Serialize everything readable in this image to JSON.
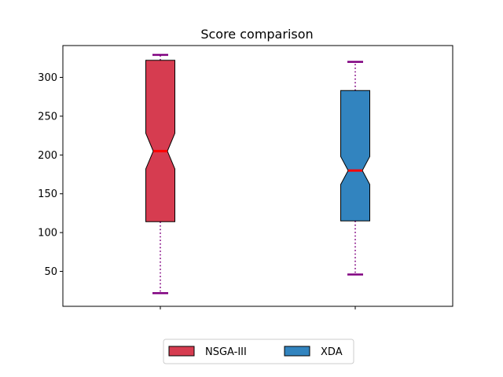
{
  "chart_data": {
    "type": "box",
    "title": "Score comparison",
    "xlabel": "",
    "ylabel": "",
    "ylim": [
      5,
      341
    ],
    "yticks": [
      50,
      100,
      150,
      200,
      250,
      300
    ],
    "notched": true,
    "grid": false,
    "legend_position": "bottom-center, below plot",
    "series": [
      {
        "name": "NSGA-III",
        "color": "#d63c50",
        "whisker_low": 22,
        "q1": 114,
        "median": 205,
        "q3": 322,
        "whisker_high": 329,
        "notch_low": 182,
        "notch_high": 228
      },
      {
        "name": "XDA",
        "color": "#3284bf",
        "whisker_low": 46,
        "q1": 115,
        "median": 180,
        "q3": 283,
        "whisker_high": 320,
        "notch_low": 162,
        "notch_high": 198
      }
    ],
    "style": {
      "median_color": "#ff0000",
      "whisker_color": "#800080",
      "whisker_linestyle": "dotted"
    }
  }
}
